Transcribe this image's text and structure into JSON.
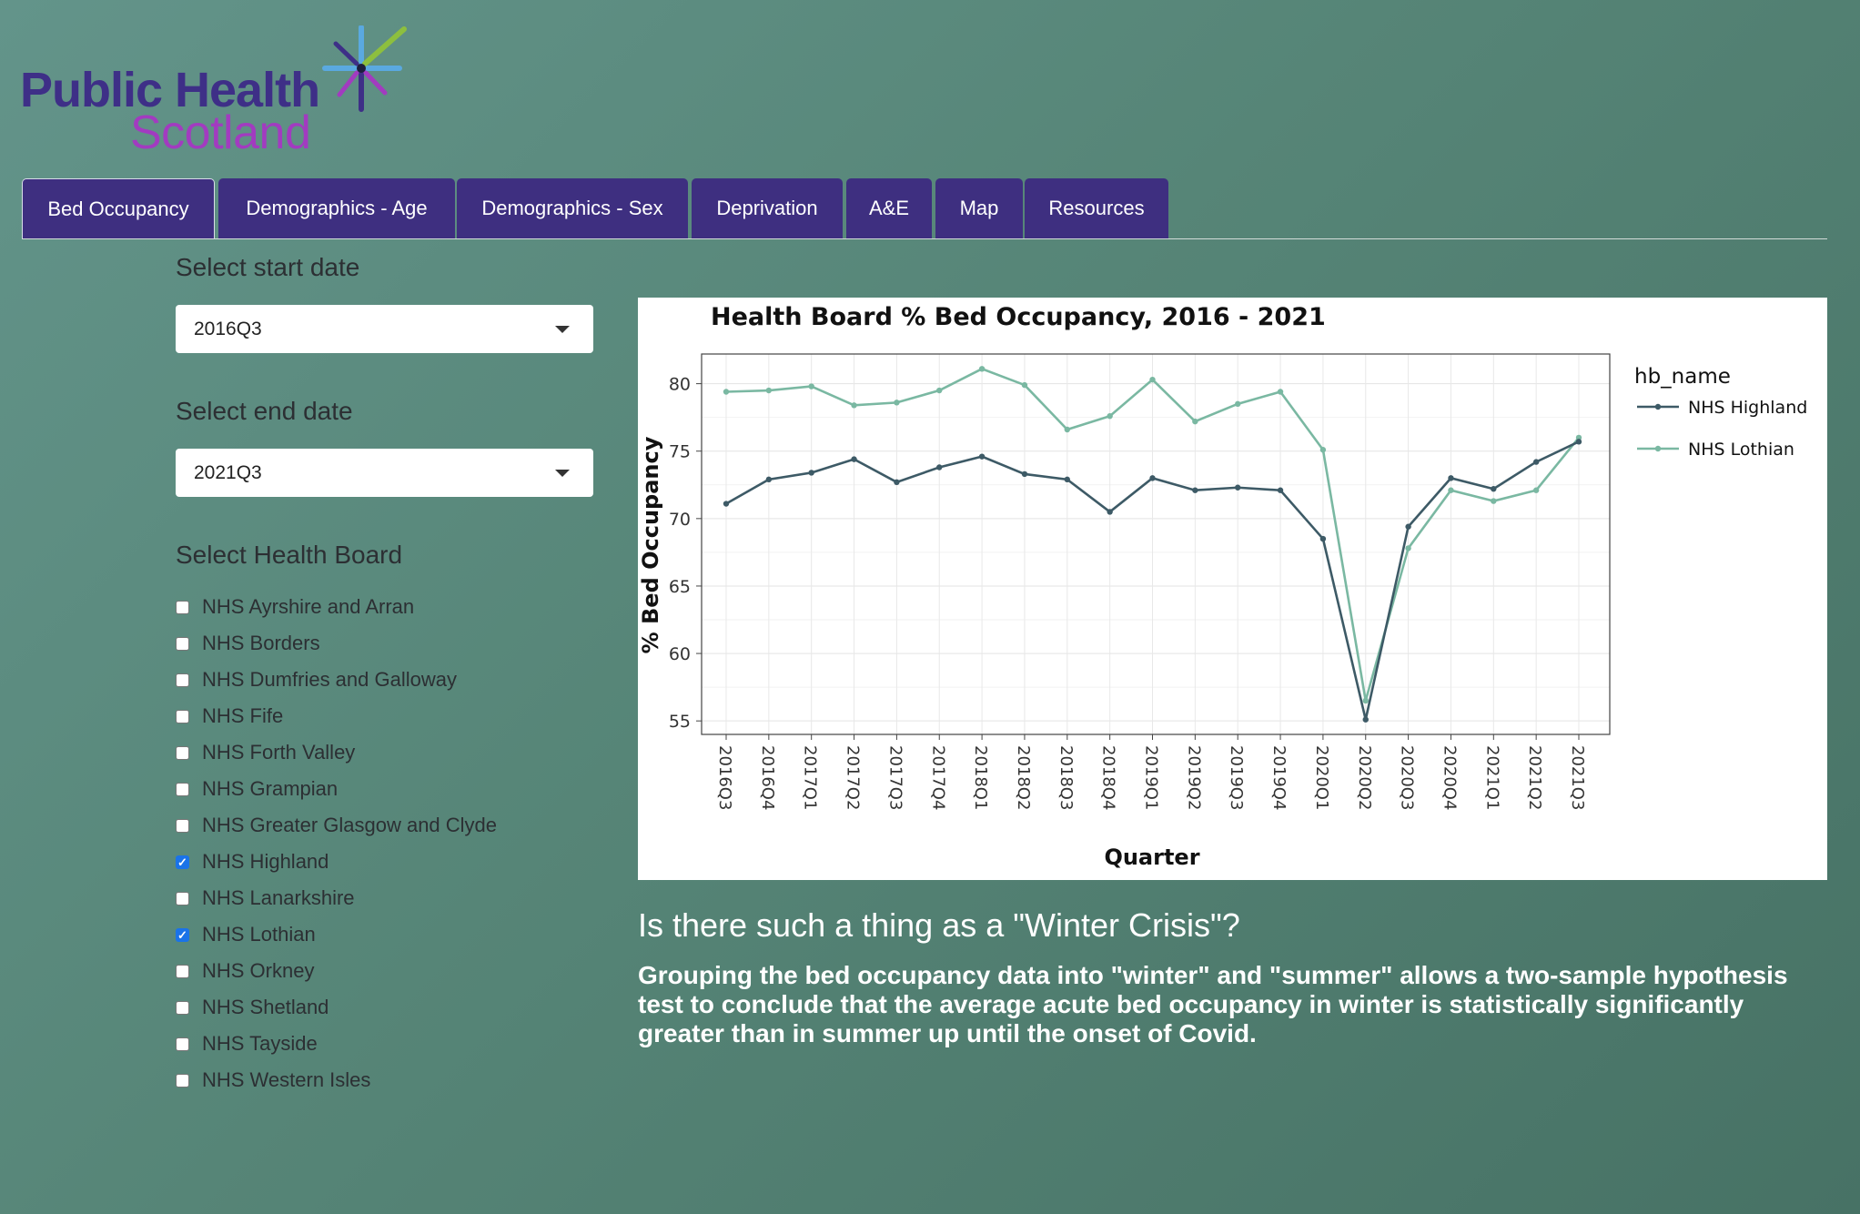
{
  "logo": {
    "line1": "Public Health",
    "line2": "Scotland"
  },
  "tabs": [
    {
      "label": "Bed Occupancy",
      "active": true
    },
    {
      "label": "Demographics - Age"
    },
    {
      "label": "Demographics - Sex"
    },
    {
      "label": "Deprivation"
    },
    {
      "label": "A&E"
    },
    {
      "label": "Map"
    },
    {
      "label": "Resources"
    }
  ],
  "controls": {
    "start_label": "Select start date",
    "start_value": "2016Q3",
    "end_label": "Select end date",
    "end_value": "2021Q3",
    "board_label": "Select Health Board",
    "boards": [
      {
        "label": "NHS Ayrshire and Arran",
        "checked": false
      },
      {
        "label": "NHS Borders",
        "checked": false
      },
      {
        "label": "NHS Dumfries and Galloway",
        "checked": false
      },
      {
        "label": "NHS Fife",
        "checked": false
      },
      {
        "label": "NHS Forth Valley",
        "checked": false
      },
      {
        "label": "NHS Grampian",
        "checked": false
      },
      {
        "label": "NHS Greater Glasgow and Clyde",
        "checked": false
      },
      {
        "label": "NHS Highland",
        "checked": true
      },
      {
        "label": "NHS Lanarkshire",
        "checked": false
      },
      {
        "label": "NHS Lothian",
        "checked": true
      },
      {
        "label": "NHS Orkney",
        "checked": false
      },
      {
        "label": "NHS Shetland",
        "checked": false
      },
      {
        "label": "NHS Tayside",
        "checked": false
      },
      {
        "label": "NHS Western Isles",
        "checked": false
      }
    ]
  },
  "chart_data": {
    "type": "line",
    "title": "Health Board % Bed Occupancy, 2016 - 2021",
    "xlabel": "Quarter",
    "ylabel": "% Bed Occupancy",
    "legend_title": "hb_name",
    "legend_position": "right",
    "grid": true,
    "ylim": [
      54,
      82.2
    ],
    "yticks": [
      55,
      60,
      65,
      70,
      75,
      80
    ],
    "x": [
      "2016Q3",
      "2016Q4",
      "2017Q1",
      "2017Q2",
      "2017Q3",
      "2017Q4",
      "2018Q1",
      "2018Q2",
      "2018Q3",
      "2018Q4",
      "2019Q1",
      "2019Q2",
      "2019Q3",
      "2019Q4",
      "2020Q1",
      "2020Q2",
      "2020Q3",
      "2020Q4",
      "2021Q1",
      "2021Q2",
      "2021Q3"
    ],
    "series": [
      {
        "name": "NHS Highland",
        "color": "#3d5a66",
        "values": [
          71.1,
          72.9,
          73.4,
          74.4,
          72.7,
          73.8,
          74.6,
          73.3,
          72.9,
          70.5,
          73.0,
          72.1,
          72.3,
          72.1,
          68.5,
          55.1,
          69.4,
          73.0,
          72.2,
          74.2,
          75.7
        ]
      },
      {
        "name": "NHS Lothian",
        "color": "#7ab8a2",
        "values": [
          79.4,
          79.5,
          79.8,
          78.4,
          78.6,
          79.5,
          81.1,
          79.9,
          76.6,
          77.6,
          80.3,
          77.2,
          78.5,
          79.4,
          75.1,
          56.5,
          67.8,
          72.1,
          71.3,
          72.1,
          76.0
        ]
      }
    ]
  },
  "insight": {
    "heading": "Is there such a thing as a \"Winter Crisis\"?",
    "body": "Grouping the bed occupancy data into \"winter\" and \"summer\" allows a two-sample hypothesis test to conclude that the average acute bed occupancy in winter is statistically significantly greater than in summer up until the onset of Covid."
  }
}
